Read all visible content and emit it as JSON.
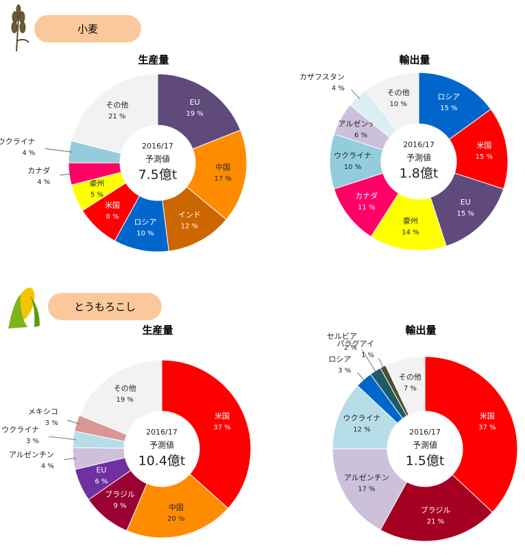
{
  "sections": [
    "小麦",
    "とうもろこし"
  ],
  "chart_data": [
    {
      "type": "donut",
      "title": "生産量",
      "center_label": [
        "2016/17",
        "予測値",
        "7.5億t"
      ],
      "categories": [
        "EU",
        "中国",
        "インド",
        "ロシア",
        "米国",
        "豪州",
        "カナダ",
        "ウクライナ",
        "その他"
      ],
      "values": [
        19,
        17,
        12,
        10,
        8,
        5,
        4,
        4,
        21
      ],
      "value_labels": [
        "19 %",
        "17 %",
        "12 %",
        "10 %",
        "8 %",
        "5 %",
        "4 %",
        "4 %",
        "21 %"
      ],
      "colors": [
        "#604a7b",
        "#ff8c00",
        "#cc6600",
        "#0066cc",
        "#ff0000",
        "#ffff00",
        "#ff0066",
        "#93cddd",
        "#f2f2f2"
      ]
    },
    {
      "type": "donut",
      "title": "輸出量",
      "center_label": [
        "2016/17",
        "予測値",
        "1.8億t"
      ],
      "categories": [
        "ロシア",
        "米国",
        "EU",
        "豪州",
        "カナダ",
        "ウクライナ",
        "アルゼンチン",
        "カザフスタン",
        "その他"
      ],
      "values": [
        15,
        15,
        15,
        14,
        11,
        10,
        6,
        4,
        10
      ],
      "value_labels": [
        "15 %",
        "15 %",
        "15 %",
        "14 %",
        "11 %",
        "10 %",
        "6 %",
        "4 %",
        "10 %"
      ],
      "colors": [
        "#0066cc",
        "#ff0000",
        "#604a7b",
        "#ffff00",
        "#ff0066",
        "#93cddd",
        "#ccc0da",
        "#dbeef4",
        "#f2f2f2"
      ]
    },
    {
      "type": "donut",
      "title": "生産量",
      "center_label": [
        "2016/17",
        "予測値",
        "10.4億t"
      ],
      "categories": [
        "米国",
        "中国",
        "ブラジル",
        "EU",
        "アルゼンチン",
        "ウクライナ",
        "メキシコ",
        "その他"
      ],
      "values": [
        37,
        20,
        9,
        6,
        4,
        3,
        3,
        19
      ],
      "value_labels": [
        "37 %",
        "20 %",
        "9 %",
        "6 %",
        "4 %",
        "3 %",
        "3 %",
        "19 %"
      ],
      "colors": [
        "#ff0000",
        "#ff8c00",
        "#990033",
        "#7030a0",
        "#ccc0da",
        "#b7dee8",
        "#d99694",
        "#f2f2f2"
      ]
    },
    {
      "type": "donut",
      "title": "輸出量",
      "center_label": [
        "2016/17",
        "予測値",
        "1.5億t"
      ],
      "categories": [
        "米国",
        "ブラジル",
        "アルゼンチン",
        "ウクライナ",
        "ロシア",
        "セルビア",
        "パラグアイ",
        "その他"
      ],
      "values": [
        37,
        21,
        17,
        12,
        3,
        2,
        1,
        7
      ],
      "value_labels": [
        "37 %",
        "21 %",
        "17 %",
        "12 %",
        "3 %",
        "2 %",
        "1 %",
        "7 %"
      ],
      "colors": [
        "#ff0000",
        "#a50021",
        "#ccc0da",
        "#b7dee8",
        "#0066cc",
        "#215968",
        "#4f4f2f",
        "#f2f2f2"
      ]
    }
  ]
}
